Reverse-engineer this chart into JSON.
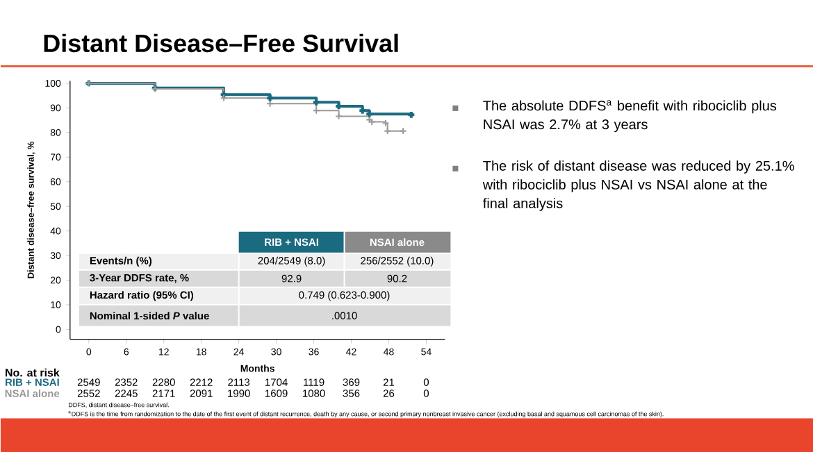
{
  "chart_data": {
    "type": "step",
    "title": "Distant Disease–Free Survival",
    "xlabel": "Months",
    "ylabel": "Distant disease–free survival, %",
    "xlim": [
      -3,
      57
    ],
    "ylim": [
      -4,
      101
    ],
    "xticks": [
      0,
      6,
      12,
      18,
      24,
      30,
      36,
      42,
      48,
      54
    ],
    "yticks": [
      0,
      10,
      20,
      30,
      40,
      50,
      60,
      70,
      80,
      90,
      100
    ],
    "marker": "cross",
    "series": [
      {
        "name": "RIB + NSAI",
        "color": "#1b6b80",
        "x": [
          0,
          10.6,
          21.6,
          29,
          36.4,
          40,
          43.8,
          44.9,
          51.6
        ],
        "values": [
          100,
          98.1,
          95.4,
          94,
          92.3,
          90.7,
          88.9,
          87.5,
          87.2
        ]
      },
      {
        "name": "NSAI alone",
        "color": "#999999",
        "x": [
          0,
          10.6,
          21.6,
          29,
          36.4,
          40,
          44.9,
          45.3,
          47.5,
          47.8,
          50.3
        ],
        "values": [
          100,
          97.7,
          94,
          91.7,
          88.9,
          86.6,
          85.2,
          84.3,
          83.8,
          80.6,
          80.6
        ]
      }
    ],
    "annotations": [
      "Events/n (%)",
      "204/2549 (8.0)",
      "256/2552 (10.0)",
      "3-Year DDFS rate, %",
      "92.9",
      "90.2",
      "Hazard ratio (95% CI)",
      "0.749 (0.623-0.900)",
      "Nominal 1-sided *P* value",
      ".0010",
      "RIB + NSAI",
      "NSAI alone",
      "No. at risk",
      "2549",
      "2352",
      "2280",
      "2212",
      "2113",
      "1704",
      "1119",
      "369",
      "21",
      "0",
      "2552",
      "2245",
      "2171",
      "2091",
      "1990",
      "1609",
      "1080",
      "356",
      "26",
      "0",
      "The absolute DDFS$^{a}$ benefit with ribociclib plus NSAI was 2.7% at 3 years",
      "The risk of distant disease was reduced by 25.1% with ribociclib plus NSAI vs NSAI alone at the final analysis",
      "DDFS, distant disease–free survival.",
      "$^{a}$DDFS is the time from randomization to the date of the first event of distant recurrence, death by any cause, or second primary nonbreast invasive cancer (excluding basal and squamous cell carcinomas of the skin)."
    ]
  }
}
